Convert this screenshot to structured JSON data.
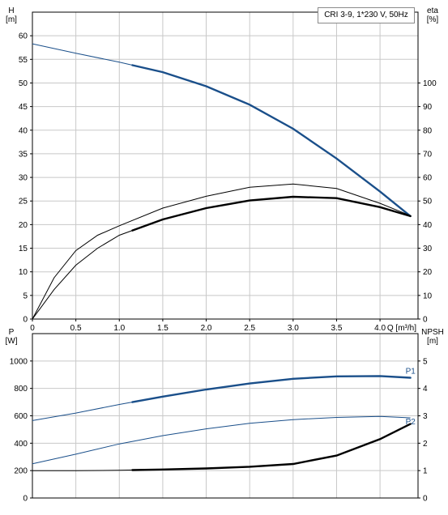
{
  "chart_data": [
    {
      "type": "line",
      "title": "CRI 3-9, 1*230 V, 50Hz",
      "xlabel": "Q [m³/h]",
      "ylabel_left": [
        "H",
        "[m]"
      ],
      "ylabel_right": [
        "eta",
        "[%]"
      ],
      "xlim": [
        0,
        4.4
      ],
      "ylim_left": [
        0,
        65
      ],
      "ylim_right": [
        0,
        130
      ],
      "x_ticks": [
        "0",
        "0.5",
        "1.0",
        "1.5",
        "2.0",
        "2.5",
        "3.0",
        "3.5",
        "4.0"
      ],
      "y_ticks_left": [
        "0",
        "5",
        "10",
        "15",
        "20",
        "25",
        "30",
        "35",
        "40",
        "45",
        "50",
        "55",
        "60"
      ],
      "y_ticks_right": [
        "0",
        "10",
        "20",
        "30",
        "40",
        "50",
        "60",
        "70",
        "80",
        "90",
        "100"
      ],
      "grid": true,
      "series": [
        {
          "axis": "left",
          "color": "#1a4f8a",
          "bold_range": [
            1.15,
            4.35
          ],
          "points": [
            [
              0,
              58.3
            ],
            [
              0.5,
              56.3
            ],
            [
              1.0,
              54.4
            ],
            [
              1.5,
              52.3
            ],
            [
              2.0,
              49.3
            ],
            [
              2.5,
              45.4
            ],
            [
              3.0,
              40.3
            ],
            [
              3.5,
              34.0
            ],
            [
              4.0,
              27.0
            ],
            [
              4.35,
              21.8
            ]
          ]
        },
        {
          "axis": "right",
          "color": "#000000",
          "bold_range": [
            1.15,
            4.35
          ],
          "points": [
            [
              0,
              0
            ],
            [
              0.25,
              12.5
            ],
            [
              0.5,
              22.8
            ],
            [
              0.75,
              30.0
            ],
            [
              1.0,
              35.5
            ],
            [
              1.5,
              42.2
            ],
            [
              2.0,
              47.0
            ],
            [
              2.5,
              50.2
            ],
            [
              3.0,
              51.8
            ],
            [
              3.5,
              51.2
            ],
            [
              4.0,
              47.4
            ],
            [
              4.35,
              43.6
            ]
          ]
        },
        {
          "axis": "right",
          "color": "#000000",
          "bold_range": [
            4.4,
            4.4
          ],
          "points": [
            [
              0,
              0
            ],
            [
              0.25,
              17.5
            ],
            [
              0.5,
              29.0
            ],
            [
              0.75,
              35.5
            ],
            [
              1.0,
              39.5
            ],
            [
              1.5,
              47.0
            ],
            [
              2.0,
              52.0
            ],
            [
              2.5,
              55.8
            ],
            [
              3.0,
              57.2
            ],
            [
              3.5,
              55.3
            ],
            [
              4.0,
              49.0
            ],
            [
              4.35,
              43.8
            ]
          ]
        }
      ]
    },
    {
      "type": "line",
      "xlim": [
        0,
        4.4
      ],
      "ylabel_left": [
        "P",
        "[W]"
      ],
      "ylabel_right": [
        "NPSH",
        "[m]"
      ],
      "ylim_left": [
        0,
        1200
      ],
      "ylim_right": [
        0,
        6
      ],
      "y_ticks_left": [
        "0",
        "200",
        "400",
        "600",
        "800",
        "1000"
      ],
      "y_ticks_right": [
        "0",
        "1",
        "2",
        "3",
        "4",
        "5"
      ],
      "grid": true,
      "series": [
        {
          "name": "P1",
          "axis": "left",
          "color": "#1a4f8a",
          "bold_range": [
            1.15,
            4.35
          ],
          "points": [
            [
              0,
              565
            ],
            [
              0.5,
              620
            ],
            [
              1.0,
              683
            ],
            [
              1.5,
              740
            ],
            [
              2.0,
              792
            ],
            [
              2.5,
              836
            ],
            [
              3.0,
              870
            ],
            [
              3.5,
              888
            ],
            [
              4.0,
              890
            ],
            [
              4.35,
              878
            ]
          ]
        },
        {
          "name": "P2",
          "axis": "left",
          "color": "#1a4f8a",
          "bold_range": [
            4.4,
            4.4
          ],
          "points": [
            [
              0,
              250
            ],
            [
              0.5,
              320
            ],
            [
              1.0,
              395
            ],
            [
              1.5,
              455
            ],
            [
              2.0,
              505
            ],
            [
              2.5,
              545
            ],
            [
              3.0,
              572
            ],
            [
              3.5,
              588
            ],
            [
              4.0,
              595
            ],
            [
              4.35,
              585
            ]
          ]
        },
        {
          "axis": "right",
          "color": "#000000",
          "bold_range": [
            1.15,
            4.35
          ],
          "points": [
            [
              0,
              1.0
            ],
            [
              0.5,
              1.0
            ],
            [
              1.0,
              1.01
            ],
            [
              1.5,
              1.04
            ],
            [
              2.0,
              1.08
            ],
            [
              2.5,
              1.14
            ],
            [
              3.0,
              1.24
            ],
            [
              3.5,
              1.55
            ],
            [
              4.0,
              2.15
            ],
            [
              4.35,
              2.7
            ]
          ]
        }
      ]
    }
  ]
}
